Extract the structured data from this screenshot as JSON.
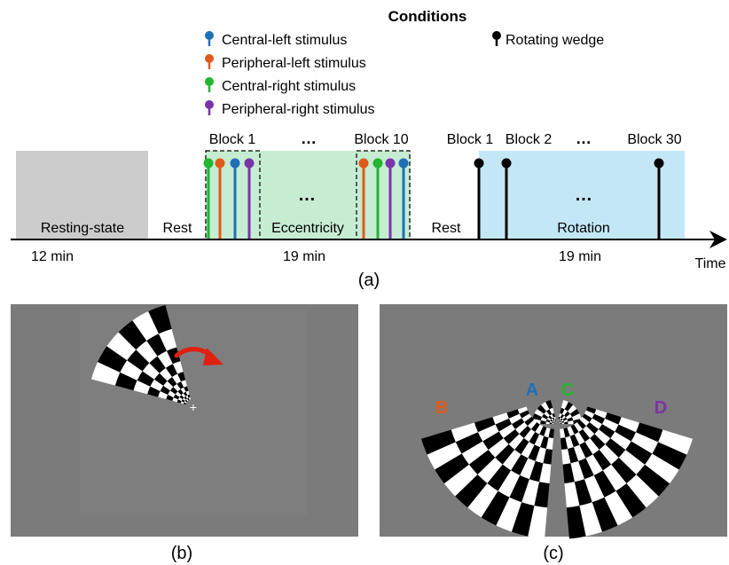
{
  "legend": {
    "title": "Conditions",
    "items": [
      {
        "label": "Central-left stimulus",
        "color": "#1f6fb8"
      },
      {
        "label": "Peripheral-left stimulus",
        "color": "#e05a1c"
      },
      {
        "label": "Central-right stimulus",
        "color": "#22b52e"
      },
      {
        "label": "Peripheral-right stimulus",
        "color": "#7a34a8"
      }
    ],
    "wedge": {
      "label": "Rotating wedge",
      "color": "#000000"
    }
  },
  "timeline": {
    "segments": {
      "resting": "Resting-state",
      "rest1": "Rest",
      "eccentricity": "Eccentricity",
      "rest2": "Rest",
      "rotation": "Rotation"
    },
    "durations": {
      "resting": "12 min",
      "eccentricity": "19 min",
      "rotation": "19 min"
    },
    "axis_label": "Time",
    "blocks": {
      "ecc_first": "Block 1",
      "ecc_dots": "…",
      "ecc_last": "Block 10",
      "rot_first": "Block 1",
      "rot_second": "Block 2",
      "rot_dots": "…",
      "rot_last": "Block 30"
    },
    "inner_dots": {
      "eccentricity": "…",
      "rotation": "…"
    },
    "colors": {
      "resting_fill": "#cccccc",
      "eccentricity_fill": "#c6ecd2",
      "rotation_fill": "#c4e7f6"
    }
  },
  "panel_labels": {
    "a": "(a)",
    "b": "(b)",
    "c": "(c)"
  },
  "panel_c": {
    "letters": [
      {
        "text": "A",
        "color": "#1f6fb8"
      },
      {
        "text": "B",
        "color": "#e05a1c"
      },
      {
        "text": "C",
        "color": "#22b52e"
      },
      {
        "text": "D",
        "color": "#7a34a8"
      }
    ]
  },
  "panel_b": {
    "arrow_color": "#e02010",
    "fixation": "+"
  }
}
